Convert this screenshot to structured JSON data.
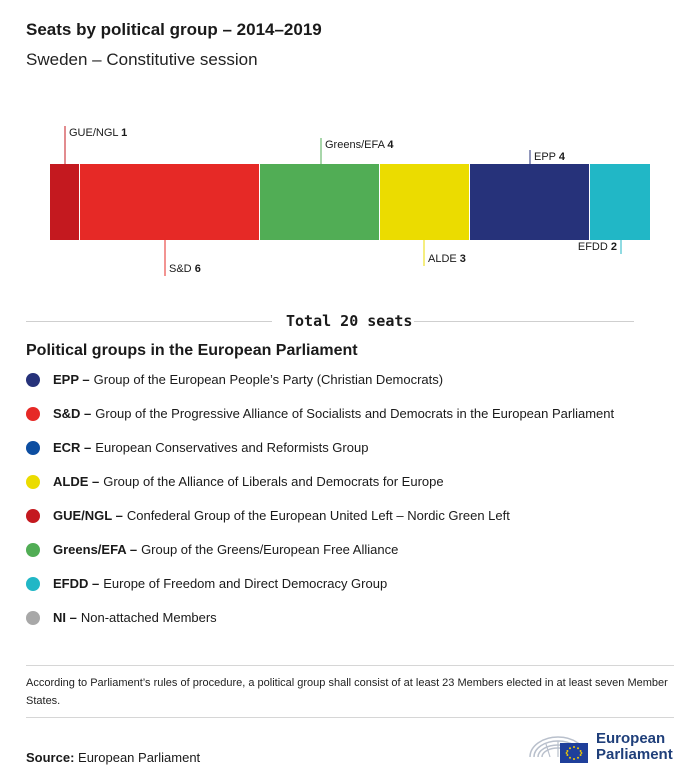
{
  "title": "Seats by political group – 2014–2019",
  "subtitle": "Sweden – Constitutive session",
  "chart_data": {
    "type": "bar",
    "orientation": "stacked-horizontal",
    "total": 20,
    "segments": [
      {
        "name": "GUE/NGL",
        "value": 1,
        "color": "#c4191f",
        "label_position": "top"
      },
      {
        "name": "S&D",
        "value": 6,
        "color": "#e62926",
        "label_position": "bottom"
      },
      {
        "name": "Greens/EFA",
        "value": 4,
        "color": "#51ad55",
        "label_position": "top"
      },
      {
        "name": "ALDE",
        "value": 3,
        "color": "#ebdc00",
        "label_position": "bottom"
      },
      {
        "name": "EPP",
        "value": 4,
        "color": "#26327a",
        "label_position": "top"
      },
      {
        "name": "EFDD",
        "value": 2,
        "color": "#21b7c6",
        "label_position": "bottom"
      }
    ]
  },
  "total_label": "Total 20 seats",
  "legend_title": "Political groups in the European Parliament",
  "legend": [
    {
      "abbr": "EPP –",
      "desc": "Group of the European People’s Party (Christian Democrats)",
      "color": "#26327a"
    },
    {
      "abbr": "S&D –",
      "desc": "Group of the Progressive Alliance of Socialists and Democrats in the European Parliament",
      "color": "#e62926"
    },
    {
      "abbr": "ECR –",
      "desc": "European Conservatives and Reformists Group",
      "color": "#0d4ea1"
    },
    {
      "abbr": "ALDE –",
      "desc": "Group of the Alliance of Liberals and Democrats for Europe",
      "color": "#ebdc00"
    },
    {
      "abbr": "GUE/NGL –",
      "desc": "Confederal Group of the European United Left – Nordic Green Left",
      "color": "#c4191f"
    },
    {
      "abbr": "Greens/EFA –",
      "desc": "Group of the Greens/European Free Alliance",
      "color": "#51ad55"
    },
    {
      "abbr": "EFDD –",
      "desc": "Europe of Freedom and Direct Democracy Group",
      "color": "#21b7c6"
    },
    {
      "abbr": "NI –",
      "desc": "Non-attached Members",
      "color": "#a8a8a8"
    }
  ],
  "note": "According to Parliament’s rules of procedure, a political group shall consist of at least 23 Members elected in at least seven Member States.",
  "source": {
    "label": "Source:",
    "value": "European Parliament"
  },
  "logo": {
    "line1": "European",
    "line2": "Parliament"
  }
}
